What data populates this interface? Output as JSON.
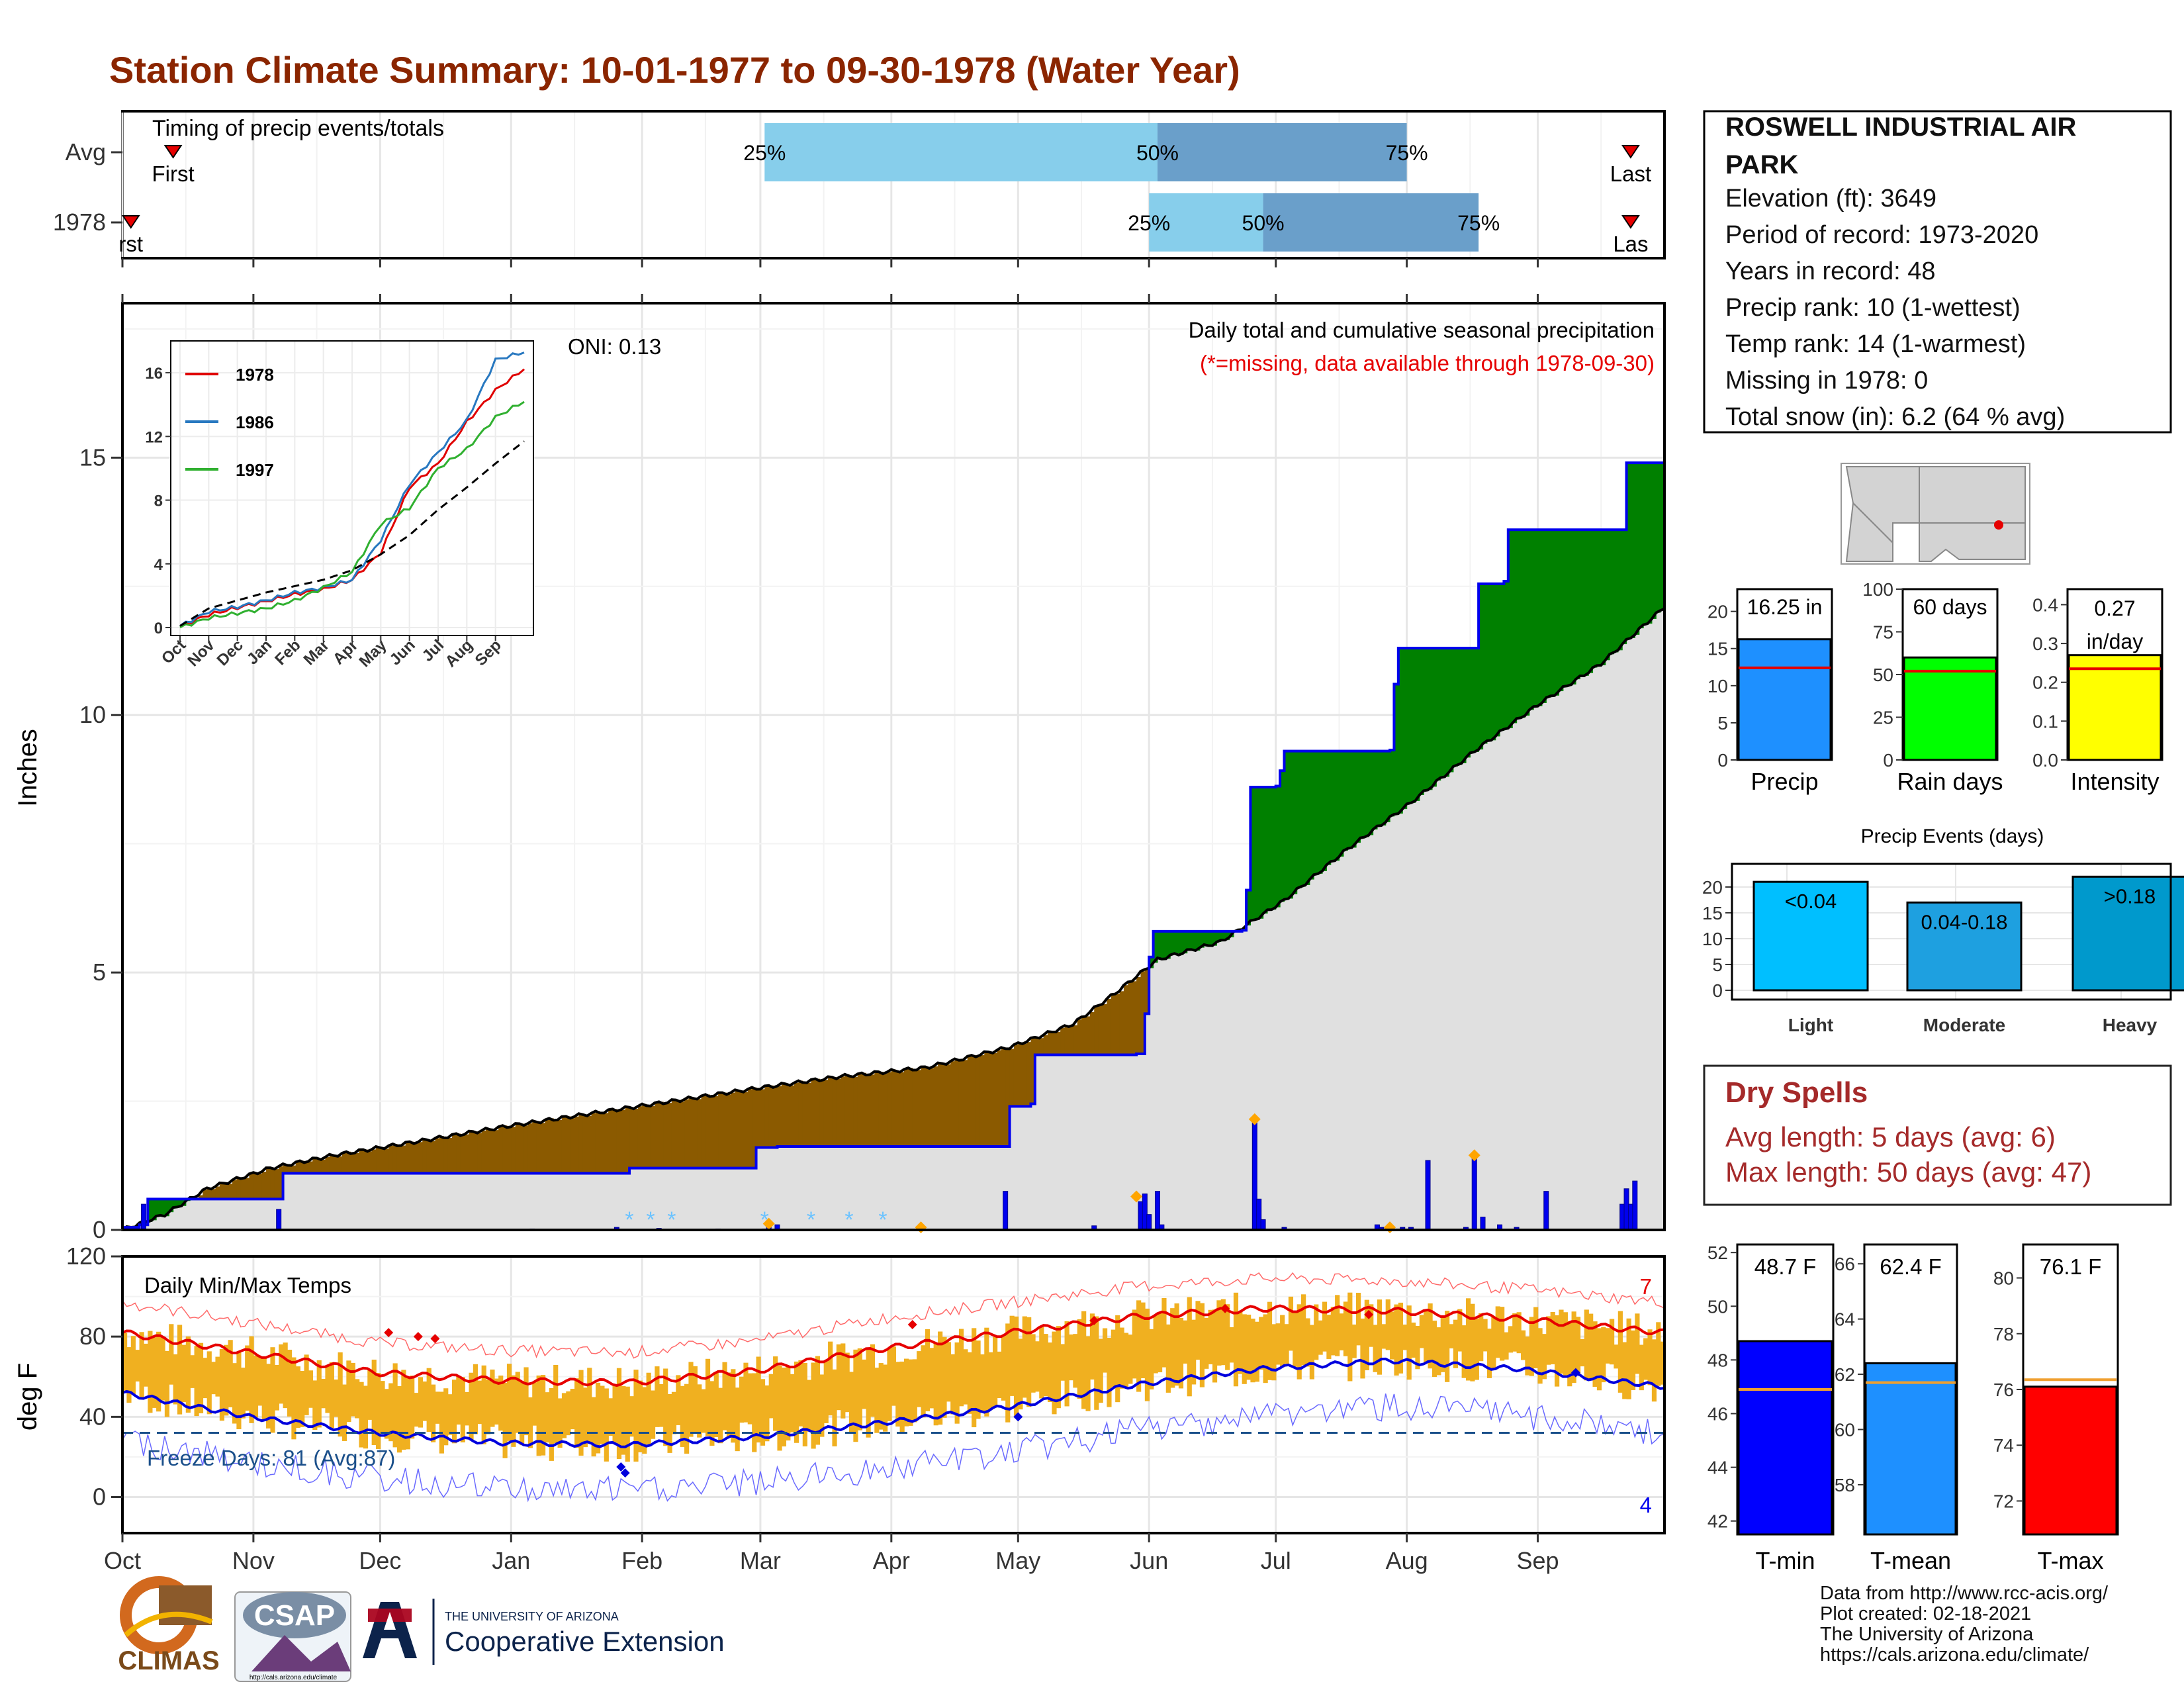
{
  "title": "Station Climate Summary: 10-01-1977 to 09-30-1978 (Water Year)",
  "colors": {
    "title": "#8b2500",
    "brown": "#8b5a00",
    "green": "#008000",
    "blue": "#0000ee",
    "gray_fill": "#e0e0e0",
    "light_blue": "#87ceeb",
    "steel_blue": "#6a9fca",
    "temp_bar": "#f0b020",
    "red": "#e60000",
    "orange": "#ffa500"
  },
  "timing": {
    "title": "Timing of precip events/totals",
    "rows": [
      "Avg",
      "1978"
    ],
    "avg": {
      "first_label": "First",
      "last_label": "Last",
      "p25": "25%",
      "p50": "50%",
      "p75": "75%",
      "first_day": 12,
      "p25_day": 152,
      "p50_day": 245,
      "p75_day": 304,
      "last_day": 357
    },
    "y1978": {
      "first_label": "rst",
      "last_label": "Las",
      "p25": "25%",
      "p50": "50%",
      "p75": "75%",
      "first_day": 2,
      "p25_day": 243,
      "p50_day": 270,
      "p75_day": 321,
      "last_day": 357
    }
  },
  "precip_panel": {
    "ylabel": "Inches",
    "oni": "ONI: 0.13",
    "subtitle": "Daily total and cumulative seasonal precipitation",
    "missing_note": "(*=missing, data available through 1978-09-30)",
    "y_ticks": [
      "0",
      "5",
      "10",
      "15"
    ]
  },
  "inset": {
    "legend": [
      "1978",
      "1986",
      "1997"
    ],
    "y_ticks": [
      "0",
      "4",
      "8",
      "12",
      "16"
    ],
    "months": [
      "Oct",
      "Nov",
      "Dec",
      "Jan",
      "Feb",
      "Mar",
      "Apr",
      "May",
      "Jun",
      "Jul",
      "Aug",
      "Sep"
    ]
  },
  "temp_panel": {
    "ylabel": "deg F",
    "title": "Daily Min/Max Temps",
    "freeze_label": "Freeze Days: 81 (Avg:87)",
    "count_max": "7",
    "count_min": "4",
    "y_ticks": [
      "0",
      "40",
      "80",
      "120"
    ]
  },
  "months": [
    "Oct",
    "Nov",
    "Dec",
    "Jan",
    "Feb",
    "Mar",
    "Apr",
    "May",
    "Jun",
    "Jul",
    "Aug",
    "Sep"
  ],
  "station": {
    "name": "ROSWELL INDUSTRIAL AIR PARK",
    "elevation": "Elevation (ft): 3649",
    "period": "Period of record: 1973-2020",
    "years": "Years in record: 48",
    "precip_rank": "Precip rank: 10 (1-wettest)",
    "temp_rank": "Temp rank: 14 (1-warmest)",
    "missing": "Missing in 1978: 0",
    "snow": "Total snow (in): 6.2 (64 % avg)"
  },
  "summary_bars": [
    {
      "label": "Precip",
      "value_label": "16.25 in",
      "value": 16.25,
      "avg": 12.4,
      "ymax": 23,
      "ticks": [
        "0",
        "5",
        "10",
        "15",
        "20"
      ],
      "color": "#1e90ff"
    },
    {
      "label": "Rain days",
      "value_label": "60 days",
      "value": 60,
      "avg": 52,
      "ymax": 100,
      "ticks": [
        "0",
        "25",
        "50",
        "75",
        "100"
      ],
      "color": "#00ff00"
    },
    {
      "label": "Intensity",
      "value_label": "0.27 in/day",
      "value": 0.27,
      "avg": 0.235,
      "ymax": 0.44,
      "ticks": [
        "0.0",
        "0.1",
        "0.2",
        "0.3",
        "0.4"
      ],
      "color": "#ffff00"
    }
  ],
  "precip_events": {
    "title": "Precip Events (days)",
    "categories": [
      "Light",
      "Moderate",
      "Heavy"
    ],
    "labels": [
      "<0.04",
      "0.04-0.18",
      ">0.18"
    ],
    "values": [
      21,
      17,
      22
    ],
    "ticks": [
      "0",
      "5",
      "10",
      "15",
      "20"
    ],
    "colors": [
      "#00bfff",
      "#1ea0e0",
      "#0099cc"
    ]
  },
  "dry_spells": {
    "title": "Dry Spells",
    "avg": "Avg length: 5 days (avg: 6)",
    "max": "Max length: 50 days (avg: 47)"
  },
  "temp_bars": [
    {
      "label": "T-min",
      "value_label": "48.7 F",
      "value": 48.7,
      "avg": 46.9,
      "ymin": 41.5,
      "ymax": 52.3,
      "ticks": [
        "42",
        "44",
        "46",
        "48",
        "50",
        "52"
      ],
      "color": "#0000ff"
    },
    {
      "label": "T-mean",
      "value_label": "62.4 F",
      "value": 62.4,
      "avg": 61.7,
      "ymin": 56.2,
      "ymax": 66.7,
      "ticks": [
        "58",
        "60",
        "62",
        "64",
        "66"
      ],
      "color": "#1e90ff"
    },
    {
      "label": "T-max",
      "value_label": "76.1 F",
      "value": 76.1,
      "avg": 76.35,
      "ymin": 70.8,
      "ymax": 81.2,
      "ticks": [
        "72",
        "74",
        "76",
        "78",
        "80"
      ],
      "color": "#ff0000"
    }
  ],
  "credits": [
    "Data from http://www.rcc-acis.org/",
    "Plot created: 02-18-2021",
    "The University of Arizona",
    "https://cals.arizona.edu/climate/"
  ],
  "logos": {
    "climas": "CLIMAS",
    "csap": "CSAP",
    "csap_url": "http://cals.arizona.edu/climate",
    "ua_small": "THE UNIVERSITY OF ARIZONA",
    "ua_big": "Cooperative Extension"
  },
  "chart_data": {
    "type": "area",
    "title": "Daily total and cumulative seasonal precipitation",
    "ylabel": "Inches",
    "ylim": [
      0,
      18
    ],
    "x_unit": "day of water year",
    "cumulative_1978": {
      "x": [
        0,
        4,
        6,
        38,
        120,
        150,
        155,
        210,
        215,
        216,
        240,
        242,
        243,
        244,
        265,
        266,
        267,
        273,
        274,
        275,
        300,
        301,
        302,
        320,
        321,
        327,
        328,
        355,
        356,
        365
      ],
      "y": [
        0.05,
        0.1,
        0.6,
        1.1,
        1.2,
        1.6,
        1.62,
        2.4,
        2.45,
        3.4,
        3.42,
        4.2,
        5.3,
        5.8,
        5.82,
        6.6,
        8.6,
        8.62,
        8.92,
        9.3,
        9.32,
        10.6,
        11.3,
        11.3,
        12.55,
        12.6,
        13.6,
        13.6,
        14.9,
        16.25
      ]
    },
    "cumulative_avg": {
      "x": [
        0,
        10,
        20,
        35,
        50,
        70,
        90,
        110,
        130,
        150,
        170,
        190,
        210,
        225,
        235,
        245,
        260,
        275,
        290,
        305,
        320,
        335,
        350,
        365
      ],
      "y": [
        0.0,
        0.3,
        0.8,
        1.2,
        1.45,
        1.72,
        2.0,
        2.25,
        2.5,
        2.75,
        2.98,
        3.15,
        3.55,
        4.0,
        4.6,
        5.25,
        5.6,
        6.4,
        7.4,
        8.3,
        9.3,
        10.2,
        11.0,
        12.1
      ]
    },
    "daily_precip": {
      "x": [
        5,
        37,
        97,
        117,
        127,
        141,
        152,
        153,
        155,
        209,
        230,
        241,
        242,
        243,
        245,
        246,
        268,
        269,
        270,
        275,
        297,
        298,
        300,
        303,
        305,
        309,
        318,
        320,
        322,
        326,
        330,
        337,
        355,
        356,
        357,
        358
      ],
      "y": [
        0.5,
        0.4,
        0.02,
        0.05,
        0.03,
        0.02,
        0.02,
        0.05,
        0.1,
        0.75,
        0.08,
        0.55,
        0.7,
        0.3,
        0.75,
        0.1,
        2.1,
        0.6,
        0.2,
        0.05,
        0.1,
        0.05,
        0.05,
        0.05,
        0.05,
        1.35,
        0.05,
        1.45,
        0.25,
        0.1,
        0.05,
        0.75,
        0.5,
        0.8,
        0.5,
        0.95
      ]
    },
    "inset_series": [
      {
        "name": "1978",
        "x": [
          0,
          1,
          2,
          3,
          4,
          5,
          6,
          7,
          8,
          9,
          10,
          11,
          12
        ],
        "y": [
          0.1,
          0.8,
          1.25,
          1.65,
          2.1,
          2.4,
          3.0,
          4.7,
          8.8,
          10.3,
          12.9,
          14.9,
          16.25
        ]
      },
      {
        "name": "1986",
        "x": [
          0,
          1,
          2,
          3,
          4,
          5,
          6,
          7,
          8,
          9,
          10,
          11,
          12
        ],
        "y": [
          0.1,
          1.0,
          1.3,
          1.7,
          2.2,
          2.5,
          3.0,
          5.5,
          9.0,
          11.0,
          13.0,
          16.8,
          17.3
        ]
      },
      {
        "name": "1997",
        "x": [
          0,
          1,
          2,
          3,
          4,
          5,
          6,
          7,
          8,
          9,
          10,
          11,
          12
        ],
        "y": [
          0.0,
          0.6,
          0.9,
          1.2,
          1.7,
          2.5,
          3.5,
          6.5,
          7.5,
          10.0,
          11.2,
          13.2,
          14.2
        ]
      },
      {
        "name": "avg",
        "x": [
          0,
          1,
          2,
          3,
          4,
          5,
          6,
          7,
          8,
          9,
          10,
          11,
          12
        ],
        "y": [
          0.1,
          1.2,
          1.7,
          2.2,
          2.6,
          3.0,
          3.6,
          4.6,
          5.8,
          7.4,
          8.8,
          10.3,
          11.7
        ]
      }
    ],
    "temperature": {
      "ylabel": "deg F",
      "ylim": [
        -18,
        120
      ],
      "freeze_line": 32,
      "avg_max": {
        "x": [
          0,
          30,
          60,
          90,
          120,
          150,
          180,
          210,
          240,
          270,
          300,
          330,
          365
        ],
        "y": [
          82,
          72,
          62,
          58,
          57,
          63,
          74,
          82,
          90,
          94,
          93,
          89,
          82
        ]
      },
      "avg_min": {
        "x": [
          0,
          30,
          60,
          90,
          120,
          150,
          180,
          210,
          240,
          270,
          300,
          330,
          365
        ],
        "y": [
          52,
          40,
          32,
          27,
          26,
          30,
          37,
          45,
          56,
          64,
          68,
          64,
          55
        ]
      }
    }
  }
}
